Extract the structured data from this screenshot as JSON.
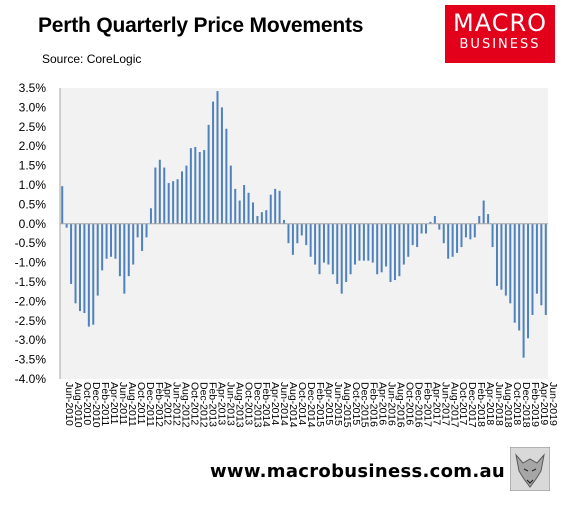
{
  "header": {
    "title": "Perth Quarterly Price Movements",
    "source": "Source: CoreLogic"
  },
  "logo": {
    "line1": "MACRO",
    "line2": "BUSINESS",
    "bg_color": "#e3001b"
  },
  "footer": {
    "url": "www.macrobusiness.com.au",
    "logo_icon": "wolf-icon"
  },
  "chart_data": {
    "type": "bar",
    "bar_color": "#4f81bd",
    "plot_bg": "#f2f2f2",
    "ylim": [
      -4.0,
      3.5
    ],
    "yticks": [
      "3.5%",
      "3.0%",
      "2.5%",
      "2.0%",
      "1.5%",
      "1.0%",
      "0.5%",
      "0.0%",
      "-0.5%",
      "-1.0%",
      "-1.5%",
      "-2.0%",
      "-2.5%",
      "-3.0%",
      "-3.5%",
      "-4.0%"
    ],
    "xticks": [
      "Jun-2010",
      "Aug-2010",
      "Oct-2010",
      "Dec-2010",
      "Feb-2011",
      "Apr-2011",
      "Jun-2011",
      "Aug-2011",
      "Oct-2011",
      "Dec-2011",
      "Feb-2012",
      "Apr-2012",
      "Jun-2012",
      "Aug-2012",
      "Oct-2012",
      "Dec-2012",
      "Feb-2013",
      "Apr-2013",
      "Jun-2013",
      "Aug-2013",
      "Oct-2013",
      "Dec-2013",
      "Feb-2014",
      "Apr-2014",
      "Jun-2014",
      "Aug-2014",
      "Oct-2014",
      "Dec-2014",
      "Feb-2015",
      "Apr-2015",
      "Jun-2015",
      "Aug-2015",
      "Oct-2015",
      "Dec-2015",
      "Feb-2016",
      "Apr-2016",
      "Jun-2016",
      "Aug-2016",
      "Oct-2016",
      "Dec-2016",
      "Feb-2017",
      "Apr-2017",
      "Jun-2017",
      "Aug-2017",
      "Oct-2017",
      "Dec-2017",
      "Feb-2018",
      "Apr-2018",
      "Jun-2018",
      "Aug-2018",
      "Oct-2018",
      "Dec-2018",
      "Feb-2019",
      "Apr-2019",
      "Jun-2019"
    ],
    "values": [
      0.97,
      -0.1,
      -1.55,
      -2.05,
      -2.25,
      -2.3,
      -2.65,
      -2.6,
      -1.85,
      -1.2,
      -0.9,
      -0.85,
      -0.9,
      -1.35,
      -1.8,
      -1.35,
      -1.05,
      -0.35,
      -0.7,
      -0.35,
      0.4,
      1.45,
      1.65,
      1.45,
      1.05,
      1.1,
      1.15,
      1.35,
      1.5,
      1.95,
      1.98,
      1.85,
      1.9,
      2.55,
      3.15,
      3.42,
      3.0,
      2.45,
      1.5,
      0.9,
      0.6,
      1.0,
      0.8,
      0.55,
      0.2,
      0.3,
      0.35,
      0.75,
      0.9,
      0.85,
      0.1,
      -0.5,
      -0.8,
      -0.5,
      -0.3,
      -0.55,
      -0.85,
      -1.05,
      -1.3,
      -1.0,
      -1.05,
      -1.3,
      -1.55,
      -1.8,
      -1.5,
      -1.3,
      -1.05,
      -0.95,
      -0.95,
      -0.95,
      -1.0,
      -1.3,
      -1.25,
      -1.1,
      -1.5,
      -1.45,
      -1.35,
      -1.05,
      -0.85,
      -0.55,
      -0.6,
      -0.25,
      -0.25,
      0.05,
      0.2,
      -0.15,
      -0.5,
      -0.9,
      -0.85,
      -0.75,
      -0.6,
      -0.35,
      -0.4,
      -0.35,
      0.2,
      0.6,
      0.25,
      -0.6,
      -1.6,
      -1.7,
      -1.85,
      -2.05,
      -2.55,
      -2.75,
      -3.45,
      -2.95,
      -2.35,
      -1.8,
      -2.1,
      -2.35
    ]
  }
}
